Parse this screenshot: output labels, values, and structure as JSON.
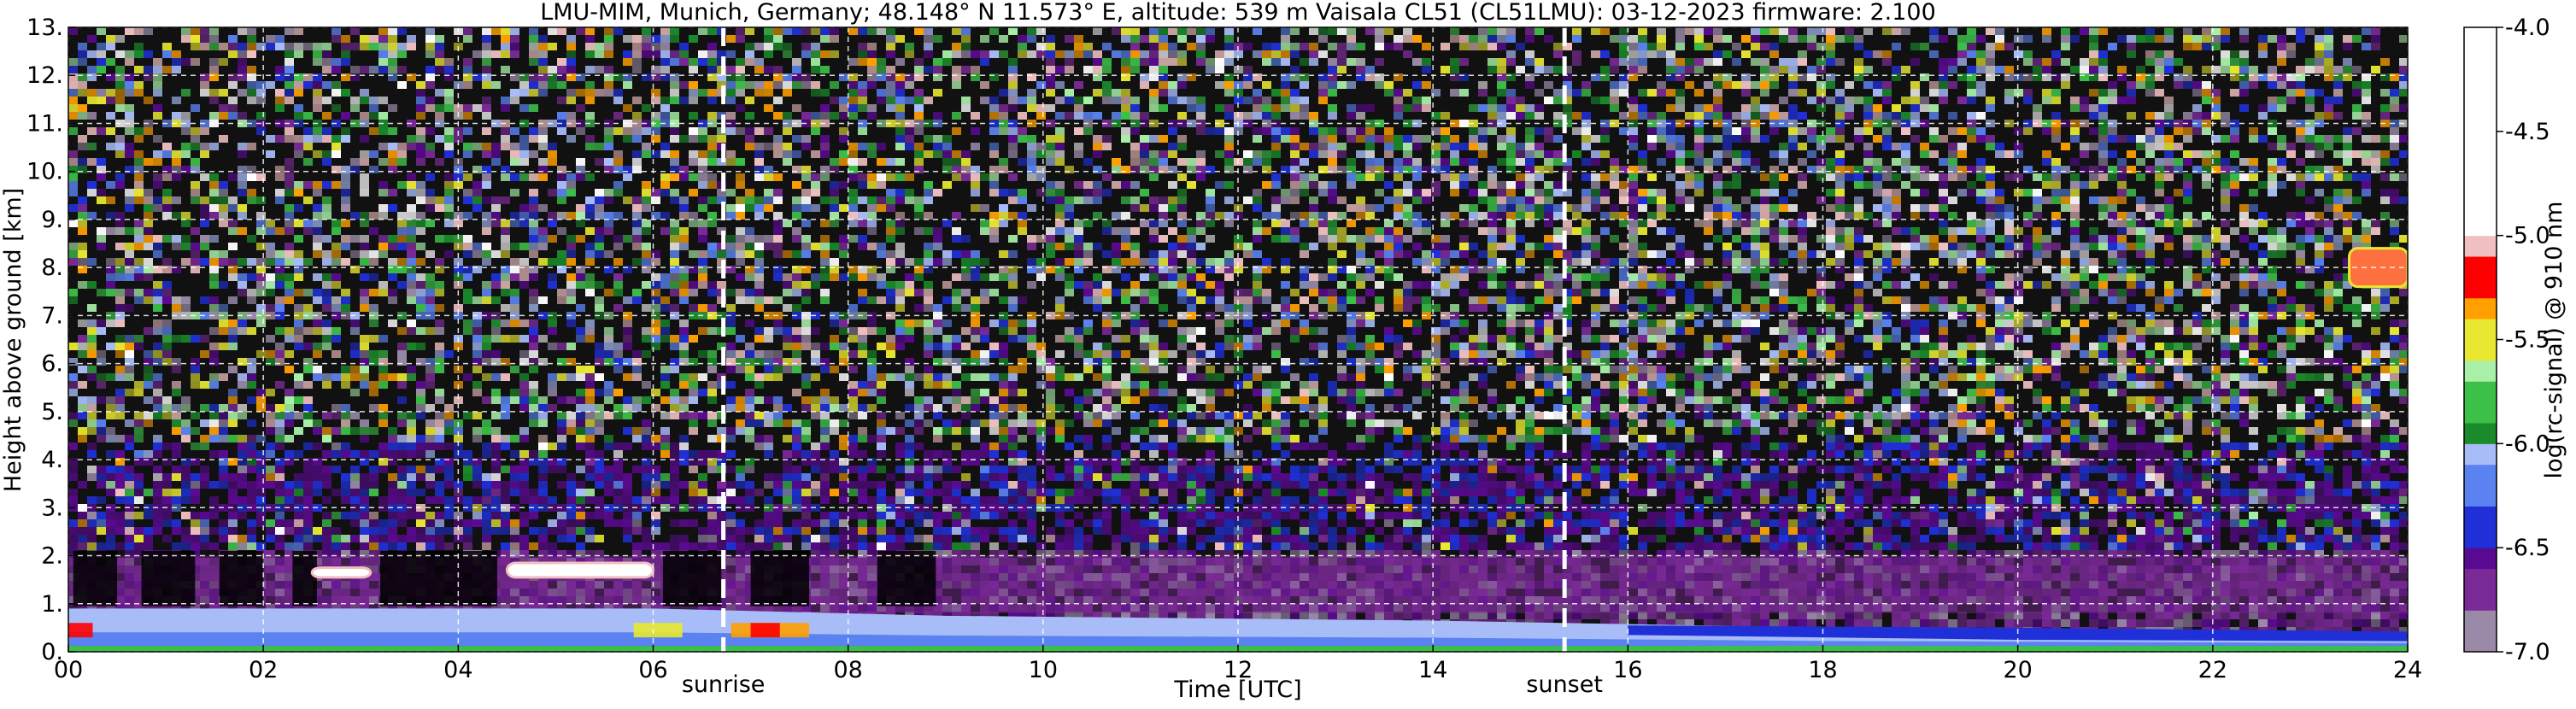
{
  "chart_data": {
    "type": "heatmap",
    "title": "LMU-MIM, Munich, Germany; 48.148° N 11.573° E, altitude: 539 m    Vaisala CL51 (CL51LMU): 03-12-2023    firmware: 2.100",
    "xlabel": "Time [UTC]",
    "ylabel": "Height above ground [km]",
    "xlim": [
      0,
      24
    ],
    "ylim": [
      0,
      13
    ],
    "x_ticks": [
      {
        "value": 0,
        "label": "00"
      },
      {
        "value": 2,
        "label": "02"
      },
      {
        "value": 4,
        "label": "04"
      },
      {
        "value": 6,
        "label": "06"
      },
      {
        "value": 8,
        "label": "08"
      },
      {
        "value": 10,
        "label": "10"
      },
      {
        "value": 12,
        "label": "12"
      },
      {
        "value": 14,
        "label": "14"
      },
      {
        "value": 16,
        "label": "16"
      },
      {
        "value": 18,
        "label": "18"
      },
      {
        "value": 20,
        "label": "20"
      },
      {
        "value": 22,
        "label": "22"
      },
      {
        "value": 24,
        "label": "24"
      }
    ],
    "y_ticks": [
      {
        "value": 0,
        "label": "0."
      },
      {
        "value": 1,
        "label": "1."
      },
      {
        "value": 2,
        "label": "2."
      },
      {
        "value": 3,
        "label": "3."
      },
      {
        "value": 4,
        "label": "4."
      },
      {
        "value": 5,
        "label": "5."
      },
      {
        "value": 6,
        "label": "6."
      },
      {
        "value": 7,
        "label": "7."
      },
      {
        "value": 8,
        "label": "8."
      },
      {
        "value": 9,
        "label": "9."
      },
      {
        "value": 10,
        "label": "10."
      },
      {
        "value": 11,
        "label": "11."
      },
      {
        "value": 12,
        "label": "12."
      },
      {
        "value": 13,
        "label": "13."
      }
    ],
    "grid": true,
    "markers": [
      {
        "label": "sunrise",
        "x": 6.72
      },
      {
        "label": "sunset",
        "x": 15.35
      }
    ],
    "colorbar": {
      "label": "log(rc-signal) @ 910 nm",
      "range": [
        -7.0,
        -4.0
      ],
      "ticks": [
        {
          "value": -4.0,
          "label": "-4.0"
        },
        {
          "value": -4.5,
          "label": "-4.5"
        },
        {
          "value": -5.0,
          "label": "-5.0"
        },
        {
          "value": -5.5,
          "label": "-5.5"
        },
        {
          "value": -6.0,
          "label": "-6.0"
        },
        {
          "value": -6.5,
          "label": "-6.5"
        },
        {
          "value": -7.0,
          "label": "-7.0"
        }
      ],
      "stops": [
        {
          "value": -7.0,
          "color": "#9a8aa8"
        },
        {
          "value": -6.75,
          "color": "#7a2a96"
        },
        {
          "value": -6.6,
          "color": "#5a0a90"
        },
        {
          "value": -6.45,
          "color": "#2030d8"
        },
        {
          "value": -6.3,
          "color": "#5a82f0"
        },
        {
          "value": -6.1,
          "color": "#a8bcf8"
        },
        {
          "value": -6.0,
          "color": "#1a8a2a"
        },
        {
          "value": -5.85,
          "color": "#3cc048"
        },
        {
          "value": -5.7,
          "color": "#a8f0a8"
        },
        {
          "value": -5.55,
          "color": "#e8e830"
        },
        {
          "value": -5.4,
          "color": "#ffa000"
        },
        {
          "value": -5.25,
          "color": "#ff0000"
        },
        {
          "value": -5.1,
          "color": "#f0c0c0"
        },
        {
          "value": -5.0,
          "color": "#ffffff"
        },
        {
          "value": -4.0,
          "color": "#ffffff"
        }
      ]
    },
    "features": [
      {
        "kind": "boundary_layer",
        "x_range": [
          0,
          24
        ],
        "y_top_km": [
          [
            0,
            0.9
          ],
          [
            6,
            0.9
          ],
          [
            9,
            0.75
          ],
          [
            14,
            0.65
          ],
          [
            18,
            0.5
          ],
          [
            24,
            0.4
          ]
        ]
      },
      {
        "kind": "cloud",
        "x_range": [
          2.5,
          3.1
        ],
        "y_range": [
          1.55,
          1.75
        ]
      },
      {
        "kind": "cloud",
        "x_range": [
          4.5,
          6.0
        ],
        "y_range": [
          1.55,
          1.85
        ]
      },
      {
        "kind": "cloud",
        "x_range": [
          23.4,
          24.0
        ],
        "y_range": [
          7.6,
          8.4
        ]
      }
    ]
  }
}
